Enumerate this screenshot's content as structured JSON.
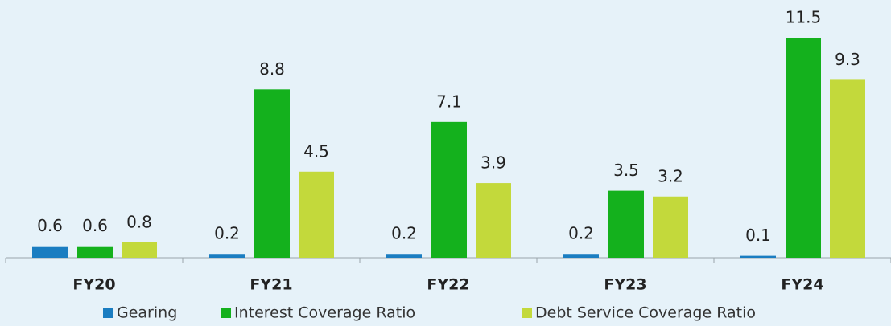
{
  "chart_data": {
    "type": "bar",
    "categories": [
      "FY20",
      "FY21",
      "FY22",
      "FY23",
      "FY24"
    ],
    "series": [
      {
        "name": "Gearing",
        "color": "#1a7dc1",
        "values": [
          0.6,
          0.2,
          0.2,
          0.2,
          0.1
        ]
      },
      {
        "name": "Interest Coverage Ratio",
        "color": "#14b11d",
        "values": [
          0.6,
          8.8,
          7.1,
          3.5,
          11.5
        ]
      },
      {
        "name": "Debt Service Coverage Ratio",
        "color": "#c3d93b",
        "values": [
          0.8,
          4.5,
          3.9,
          3.2,
          9.3
        ]
      }
    ]
  }
}
